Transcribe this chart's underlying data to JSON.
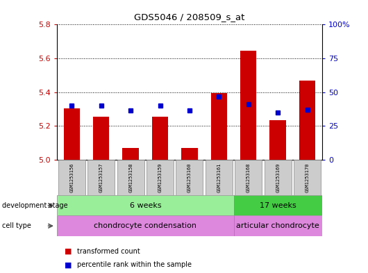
{
  "title": "GDS5046 / 208509_s_at",
  "samples": [
    "GSM1253156",
    "GSM1253157",
    "GSM1253158",
    "GSM1253159",
    "GSM1253160",
    "GSM1253161",
    "GSM1253168",
    "GSM1253169",
    "GSM1253170"
  ],
  "transformed_count": [
    5.305,
    5.255,
    5.07,
    5.255,
    5.07,
    5.395,
    5.645,
    5.235,
    5.47
  ],
  "percentile_rank": [
    5.32,
    5.32,
    5.29,
    5.32,
    5.29,
    5.375,
    5.33,
    5.28,
    5.295
  ],
  "ylim_left": [
    5.0,
    5.8
  ],
  "ylim_right": [
    0,
    100
  ],
  "yticks_left": [
    5.0,
    5.2,
    5.4,
    5.6,
    5.8
  ],
  "yticks_right": [
    0,
    25,
    50,
    75,
    100
  ],
  "ytick_labels_right": [
    "0",
    "25",
    "50",
    "75",
    "100%"
  ],
  "bar_color": "#cc0000",
  "dot_color": "#0000cc",
  "dev_stage_color1": "#99ee99",
  "dev_stage_color2": "#44cc44",
  "cell_type_color": "#dd88dd",
  "label_box_color": "#cccccc",
  "tick_color_left": "#cc0000",
  "tick_color_right": "#0000cc",
  "development_stage_label": "development stage",
  "cell_type_label": "cell type",
  "dev_stage_group1": "6 weeks",
  "dev_stage_group2": "17 weeks",
  "cell_type_group1": "chondrocyte condensation",
  "cell_type_group2": "articular chondrocyte",
  "legend_bar_label": "transformed count",
  "legend_dot_label": "percentile rank within the sample",
  "n_group1": 6,
  "n_group2": 3,
  "ybase": 5.0,
  "bar_width": 0.55
}
